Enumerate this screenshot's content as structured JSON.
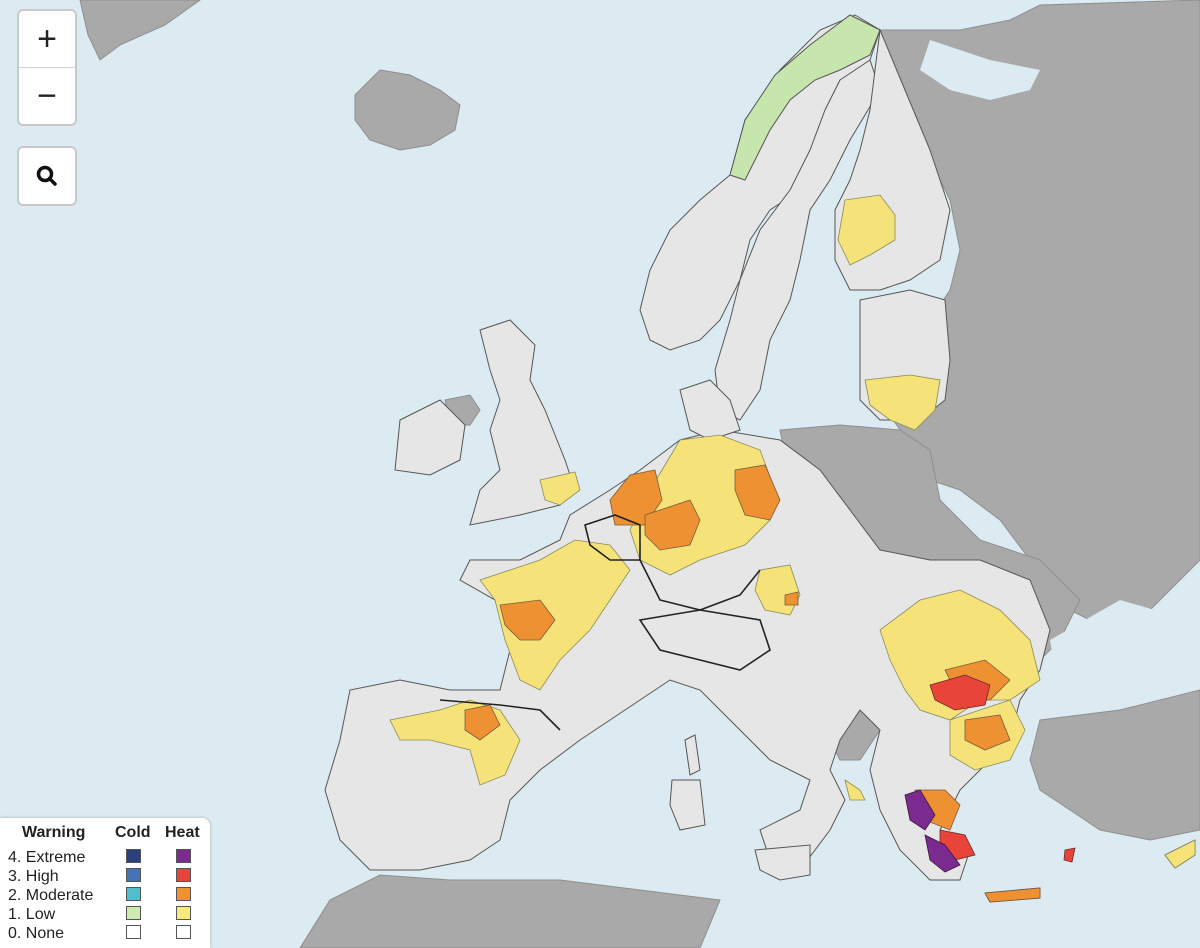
{
  "controls": {
    "zoom_in_label": "+",
    "zoom_out_label": "−",
    "search_icon": "magnifier-icon"
  },
  "legend": {
    "header_warning": "Warning",
    "header_cold": "Cold",
    "header_heat": "Heat",
    "rows": [
      {
        "label": "4. Extreme",
        "cold": "#2b3f7d",
        "heat": "#7b2a8f"
      },
      {
        "label": "3. High",
        "cold": "#4473b9",
        "heat": "#e8443a"
      },
      {
        "label": "2. Moderate",
        "cold": "#4fbfcf",
        "heat": "#f0922f"
      },
      {
        "label": "1. Low",
        "cold": "#cdeab0",
        "heat": "#f7ea7a"
      },
      {
        "label": "0. None",
        "cold": "#ffffff",
        "heat": "#ffffff"
      }
    ]
  },
  "colors": {
    "sea": "#dcebf1",
    "non_member_land": "#a9a9a9",
    "none": "#e6e6e6",
    "low_heat": "#f5e37a",
    "moderate_heat": "#ee9132",
    "high_heat": "#e8443a",
    "extreme_heat": "#7b2a8f",
    "low_cold": "#c6e6ad",
    "border": "#222222"
  }
}
